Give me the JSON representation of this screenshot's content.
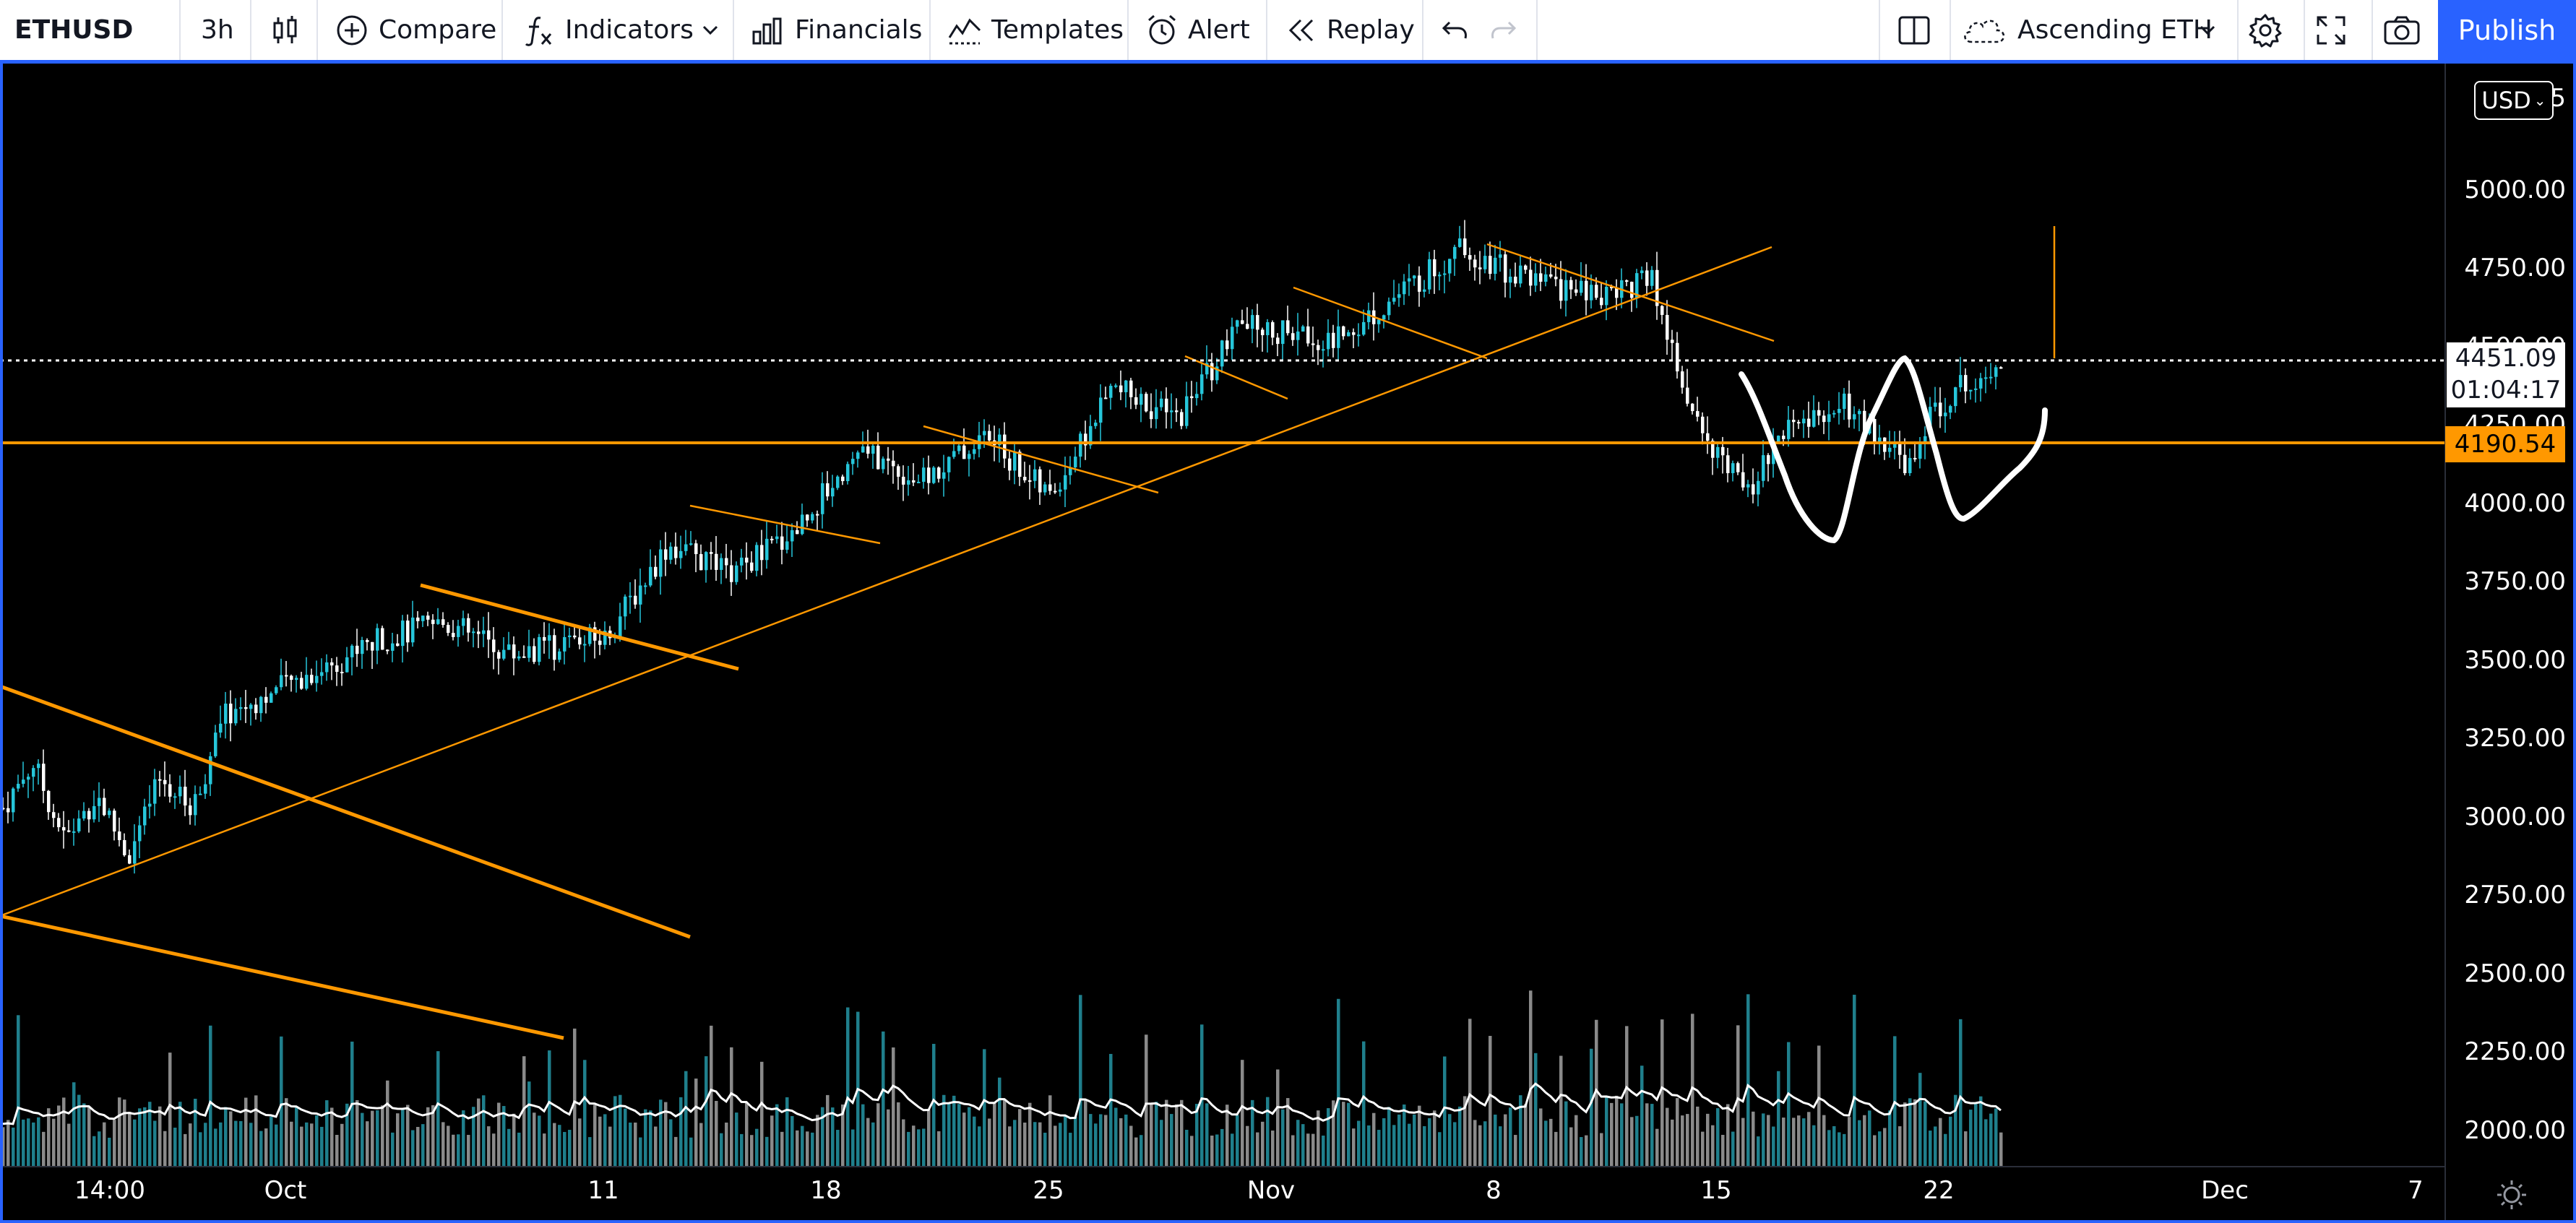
{
  "toolbar": {
    "symbol": "ETHUSD",
    "interval": "3h",
    "chart_type_icon": "candlestick-icon",
    "compare_label": "Compare",
    "indicators_label": "Indicators",
    "financials_label": "Financials",
    "templates_label": "Templates",
    "alert_label": "Alert",
    "replay_label": "Replay",
    "layout_name": "Ascending ETH",
    "publish_label": "Publish"
  },
  "price_axis": {
    "currency": "USD",
    "labels": [
      "5000.00",
      "4750.00",
      "4500.00",
      "4250.00",
      "4000.00",
      "3750.00",
      "3500.00",
      "3250.00",
      "3000.00",
      "2750.00",
      "2500.00",
      "2250.00",
      "2000.00"
    ],
    "top_partial_label": "5",
    "last_price": "4451.09",
    "countdown": "01:04:17",
    "level_price": "4190.54"
  },
  "time_axis": {
    "labels": [
      "14:00",
      "Oct",
      "11",
      "18",
      "25",
      "Nov",
      "8",
      "15",
      "22",
      "Dec",
      "7"
    ]
  },
  "colors": {
    "accent": "#2962ff",
    "background": "#000000",
    "candle_up": "#26c6da",
    "candle_down": "#ffffff",
    "trendline": "#ff9800",
    "pattern": "#ffffff"
  },
  "chart_data": {
    "type": "candlestick",
    "symbol": "ETHUSD",
    "interval": "3h",
    "ylim": [
      1900,
      5200
    ],
    "xlim": [
      "2021-09-24",
      "2021-12-10"
    ],
    "x_ticks": [
      "2021-09-24 14:00",
      "2021-10-01",
      "2021-10-11",
      "2021-10-18",
      "2021-10-25",
      "2021-11-01",
      "2021-11-08",
      "2021-11-15",
      "2021-11-22",
      "2021-12-01",
      "2021-12-07"
    ],
    "price_path": [
      {
        "x": "2021-09-24",
        "y": 3000
      },
      {
        "x": "2021-09-25",
        "y": 3150
      },
      {
        "x": "2021-09-26",
        "y": 2900
      },
      {
        "x": "2021-09-27",
        "y": 3050
      },
      {
        "x": "2021-09-28",
        "y": 2850
      },
      {
        "x": "2021-09-29",
        "y": 3100
      },
      {
        "x": "2021-09-30",
        "y": 3000
      },
      {
        "x": "2021-10-01",
        "y": 3300
      },
      {
        "x": "2021-10-04",
        "y": 3450
      },
      {
        "x": "2021-10-06",
        "y": 3550
      },
      {
        "x": "2021-10-08",
        "y": 3600
      },
      {
        "x": "2021-10-10",
        "y": 3500
      },
      {
        "x": "2021-10-13",
        "y": 3550
      },
      {
        "x": "2021-10-15",
        "y": 3850
      },
      {
        "x": "2021-10-17",
        "y": 3750
      },
      {
        "x": "2021-10-19",
        "y": 3900
      },
      {
        "x": "2021-10-21",
        "y": 4150
      },
      {
        "x": "2021-10-23",
        "y": 4050
      },
      {
        "x": "2021-10-25",
        "y": 4200
      },
      {
        "x": "2021-10-27",
        "y": 4000
      },
      {
        "x": "2021-10-29",
        "y": 4350
      },
      {
        "x": "2021-10-31",
        "y": 4250
      },
      {
        "x": "2021-11-02",
        "y": 4550
      },
      {
        "x": "2021-11-05",
        "y": 4500
      },
      {
        "x": "2021-11-07",
        "y": 4650
      },
      {
        "x": "2021-11-09",
        "y": 4800
      },
      {
        "x": "2021-11-11",
        "y": 4700
      },
      {
        "x": "2021-11-13",
        "y": 4650
      },
      {
        "x": "2021-11-15",
        "y": 4700
      },
      {
        "x": "2021-11-16",
        "y": 4300
      },
      {
        "x": "2021-11-18",
        "y": 4000
      },
      {
        "x": "2021-11-19",
        "y": 4200
      },
      {
        "x": "2021-11-21",
        "y": 4300
      },
      {
        "x": "2021-11-23",
        "y": 4100
      },
      {
        "x": "2021-11-24",
        "y": 4300
      },
      {
        "x": "2021-11-26",
        "y": 4451.09
      }
    ],
    "horizontal_levels": [
      {
        "price": 4451.09,
        "style": "dotted",
        "color": "#ffffff"
      },
      {
        "price": 4190.54,
        "style": "solid",
        "color": "#ff9800"
      }
    ],
    "volume_average_line": true,
    "grid": false
  }
}
